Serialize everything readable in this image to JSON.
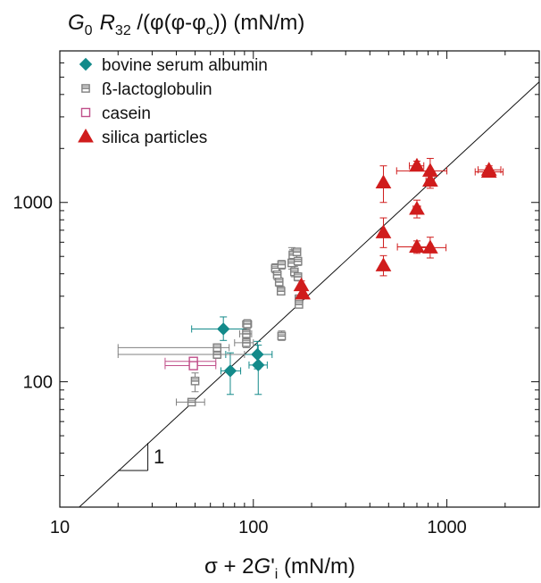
{
  "chart_data": {
    "type": "scatter",
    "title": "G0 R32 /(φ(φ-φc)) (mN/m)",
    "title_parts": {
      "g": "G",
      "g_sub": "0",
      "r": "R",
      "r_sub": "32",
      "mid": " /(φ(φ-φ",
      "phi_sub": "c",
      "end": ")) (mN/m)"
    },
    "xlabel": "σ + 2G'i (mN/m)",
    "xlabel_parts": {
      "pre": "σ + 2",
      "g": "G",
      "prime": "'",
      "sub": "i",
      "post": " (mN/m)"
    },
    "ylabel": "",
    "x_scale": "log",
    "y_scale": "log",
    "xlim": [
      10,
      3000
    ],
    "ylim": [
      20,
      7000
    ],
    "x_ticks": [
      10,
      100,
      1000
    ],
    "x_tick_labels": [
      "10",
      "100",
      "1000"
    ],
    "y_ticks": [
      100,
      1000
    ],
    "y_tick_labels": [
      "100",
      "1000"
    ],
    "grid": false,
    "legend_position": "top-left",
    "reference_line": {
      "slope": 1,
      "through": [
        [
          12.6,
          20
        ],
        [
          3000,
          4700
        ]
      ],
      "label": "1"
    },
    "series": [
      {
        "name": "bovine serum albumin",
        "marker": "diamond",
        "color": "#138a8a",
        "points": [
          {
            "x": 70,
            "y": 197,
            "x_lo": 48,
            "x_hi": 92,
            "y_lo": 170,
            "y_hi": 230
          },
          {
            "x": 76,
            "y": 115,
            "x_lo": 68,
            "x_hi": 86,
            "y_lo": 85,
            "y_hi": 145
          },
          {
            "x": 105,
            "y": 142,
            "x_lo": 72,
            "x_hi": 125,
            "y_lo": 118,
            "y_hi": 168
          },
          {
            "x": 106,
            "y": 124,
            "x_lo": 95,
            "x_hi": 118,
            "y_lo": 85,
            "y_hi": 160
          }
        ]
      },
      {
        "name": "ß-lactoglobulin",
        "marker": "square-striped",
        "color": "#808080",
        "points": [
          {
            "x": 48,
            "y": 77,
            "x_lo": 40,
            "x_hi": 56,
            "y_lo": 75,
            "y_hi": 80
          },
          {
            "x": 50,
            "y": 101,
            "x_lo": 48,
            "x_hi": 52,
            "y_lo": 88,
            "y_hi": 112
          },
          {
            "x": 65,
            "y": 142,
            "x_lo": 20,
            "x_hi": 90,
            "y_lo": 135,
            "y_hi": 150
          },
          {
            "x": 65,
            "y": 155,
            "x_lo": 20,
            "x_hi": 75,
            "y_lo": 148,
            "y_hi": 162
          },
          {
            "x": 92,
            "y": 165,
            "x_lo": 80,
            "x_hi": 100,
            "y_lo": 155,
            "y_hi": 178
          },
          {
            "x": 92,
            "y": 185,
            "x_lo": 85,
            "x_hi": 98,
            "y_lo": 175,
            "y_hi": 195
          },
          {
            "x": 93,
            "y": 210,
            "x_lo": 88,
            "x_hi": 98,
            "y_lo": 198,
            "y_hi": 222
          },
          {
            "x": 130,
            "y": 430,
            "x_lo": 124,
            "x_hi": 136,
            "y_lo": 405,
            "y_hi": 455
          },
          {
            "x": 133,
            "y": 395,
            "x_lo": 127,
            "x_hi": 139,
            "y_lo": 370,
            "y_hi": 420
          },
          {
            "x": 136,
            "y": 360,
            "x_lo": 130,
            "x_hi": 142,
            "y_lo": 340,
            "y_hi": 380
          },
          {
            "x": 139,
            "y": 320,
            "x_lo": 133,
            "x_hi": 145,
            "y_lo": 305,
            "y_hi": 340
          },
          {
            "x": 140,
            "y": 450,
            "x_lo": 135,
            "x_hi": 145,
            "y_lo": 425,
            "y_hi": 475
          },
          {
            "x": 140,
            "y": 180,
            "x_lo": 135,
            "x_hi": 145,
            "y_lo": 170,
            "y_hi": 192
          },
          {
            "x": 158,
            "y": 460,
            "x_lo": 152,
            "x_hi": 165,
            "y_lo": 425,
            "y_hi": 560
          },
          {
            "x": 160,
            "y": 510,
            "x_lo": 154,
            "x_hi": 166,
            "y_lo": 480,
            "y_hi": 545
          },
          {
            "x": 163,
            "y": 410,
            "x_lo": 157,
            "x_hi": 170,
            "y_lo": 385,
            "y_hi": 440
          },
          {
            "x": 168,
            "y": 530,
            "x_lo": 162,
            "x_hi": 174,
            "y_lo": 505,
            "y_hi": 555
          },
          {
            "x": 170,
            "y": 470,
            "x_lo": 164,
            "x_hi": 176,
            "y_lo": 445,
            "y_hi": 495
          },
          {
            "x": 170,
            "y": 385,
            "x_lo": 164,
            "x_hi": 176,
            "y_lo": 365,
            "y_hi": 405
          },
          {
            "x": 172,
            "y": 290,
            "x_lo": 166,
            "x_hi": 178,
            "y_lo": 275,
            "y_hi": 305
          },
          {
            "x": 172,
            "y": 270,
            "x_lo": 166,
            "x_hi": 178,
            "y_lo": 258,
            "y_hi": 285
          }
        ]
      },
      {
        "name": "casein",
        "marker": "square-open",
        "color": "#c0508a",
        "points": [
          {
            "x": 49,
            "y": 130,
            "x_lo": 35,
            "x_hi": 64,
            "y_lo": 124,
            "y_hi": 136
          },
          {
            "x": 49,
            "y": 123,
            "x_lo": 35,
            "x_hi": 64,
            "y_lo": 118,
            "y_hi": 128
          }
        ]
      },
      {
        "name": "silica particles",
        "marker": "triangle",
        "color": "#d01c1c",
        "points": [
          {
            "x": 177,
            "y": 345,
            "x_lo": 173,
            "x_hi": 181,
            "y_lo": 330,
            "y_hi": 365
          },
          {
            "x": 180,
            "y": 310,
            "x_lo": 176,
            "x_hi": 184,
            "y_lo": 295,
            "y_hi": 325
          },
          {
            "x": 470,
            "y": 1290,
            "x_lo": 460,
            "x_hi": 480,
            "y_lo": 1000,
            "y_hi": 1600
          },
          {
            "x": 470,
            "y": 680,
            "x_lo": 460,
            "x_hi": 480,
            "y_lo": 560,
            "y_hi": 820
          },
          {
            "x": 470,
            "y": 445,
            "x_lo": 460,
            "x_hi": 480,
            "y_lo": 390,
            "y_hi": 505
          },
          {
            "x": 700,
            "y": 1600,
            "x_lo": 640,
            "x_hi": 760,
            "y_lo": 1500,
            "y_hi": 1700
          },
          {
            "x": 700,
            "y": 920,
            "x_lo": 670,
            "x_hi": 730,
            "y_lo": 820,
            "y_hi": 1030
          },
          {
            "x": 700,
            "y": 565,
            "x_lo": 555,
            "x_hi": 840,
            "y_lo": 520,
            "y_hi": 610
          },
          {
            "x": 820,
            "y": 1500,
            "x_lo": 550,
            "x_hi": 1000,
            "y_lo": 1280,
            "y_hi": 1760
          },
          {
            "x": 820,
            "y": 1320,
            "x_lo": 780,
            "x_hi": 860,
            "y_lo": 1200,
            "y_hi": 1450
          },
          {
            "x": 820,
            "y": 560,
            "x_lo": 680,
            "x_hi": 990,
            "y_lo": 490,
            "y_hi": 640
          },
          {
            "x": 1650,
            "y": 1520,
            "x_lo": 1450,
            "x_hi": 1900,
            "y_lo": 1440,
            "y_hi": 1600
          },
          {
            "x": 1650,
            "y": 1480,
            "x_lo": 1400,
            "x_hi": 1950,
            "y_lo": 1400,
            "y_hi": 1560
          }
        ]
      }
    ]
  }
}
